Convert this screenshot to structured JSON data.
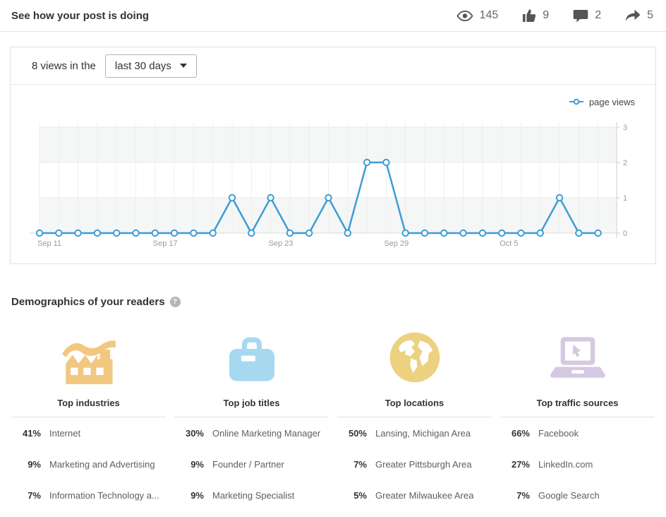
{
  "header": {
    "title": "See how your post is doing",
    "stats": [
      {
        "icon": "eye-icon",
        "value": "145"
      },
      {
        "icon": "thumbs-up-icon",
        "value": "9"
      },
      {
        "icon": "comment-icon",
        "value": "2"
      },
      {
        "icon": "share-icon",
        "value": "5"
      }
    ]
  },
  "views_card": {
    "summary_prefix": "8 views in the",
    "range_selector_value": "last 30 days",
    "legend_label": "page views"
  },
  "chart_data": {
    "type": "line",
    "title": "8 views in the last 30 days",
    "x": [
      "Sep 11",
      "Sep 12",
      "Sep 13",
      "Sep 14",
      "Sep 15",
      "Sep 16",
      "Sep 17",
      "Sep 18",
      "Sep 19",
      "Sep 20",
      "Sep 21",
      "Sep 22",
      "Sep 23",
      "Sep 24",
      "Sep 25",
      "Sep 26",
      "Sep 27",
      "Sep 28",
      "Sep 29",
      "Sep 30",
      "Oct 1",
      "Oct 2",
      "Oct 3",
      "Oct 4",
      "Oct 5",
      "Oct 6",
      "Oct 7",
      "Oct 8",
      "Oct 9",
      "Oct 10"
    ],
    "series": [
      {
        "name": "page views",
        "values": [
          0,
          0,
          0,
          0,
          0,
          0,
          0,
          0,
          0,
          0,
          1,
          0,
          1,
          0,
          0,
          1,
          0,
          2,
          2,
          0,
          0,
          0,
          0,
          0,
          0,
          0,
          0,
          1,
          0,
          0
        ]
      }
    ],
    "x_tick_indices": [
      0,
      6,
      12,
      18,
      24
    ],
    "y_ticks": [
      0,
      1,
      2,
      3
    ],
    "ylim": [
      0,
      3
    ],
    "line_color": "#3d9dd5",
    "band_color": "#f5f6f6",
    "grid": true,
    "legend_position": "top-right"
  },
  "demographics": {
    "heading": "Demographics of your readers",
    "columns": [
      {
        "icon": "factory-icon",
        "title": "Top industries",
        "accent_color": "#f2c77f",
        "rows": [
          {
            "percent": "41%",
            "label": "Internet"
          },
          {
            "percent": "9%",
            "label": "Marketing and Advertising"
          },
          {
            "percent": "7%",
            "label": "Information Technology a..."
          }
        ]
      },
      {
        "icon": "briefcase-icon",
        "title": "Top job titles",
        "accent_color": "#a6d9ef",
        "rows": [
          {
            "percent": "30%",
            "label": "Online Marketing Manager"
          },
          {
            "percent": "9%",
            "label": "Founder / Partner"
          },
          {
            "percent": "9%",
            "label": "Marketing Specialist"
          }
        ]
      },
      {
        "icon": "globe-icon",
        "title": "Top locations",
        "accent_color": "#ecd180",
        "rows": [
          {
            "percent": "50%",
            "label": "Lansing, Michigan Area"
          },
          {
            "percent": "7%",
            "label": "Greater Pittsburgh Area"
          },
          {
            "percent": "5%",
            "label": "Greater Milwaukee Area"
          }
        ]
      },
      {
        "icon": "laptop-cursor-icon",
        "title": "Top traffic sources",
        "accent_color": "#d5c9e2",
        "rows": [
          {
            "percent": "66%",
            "label": "Facebook"
          },
          {
            "percent": "27%",
            "label": "LinkedIn.com"
          },
          {
            "percent": "7%",
            "label": "Google Search"
          }
        ]
      }
    ]
  }
}
